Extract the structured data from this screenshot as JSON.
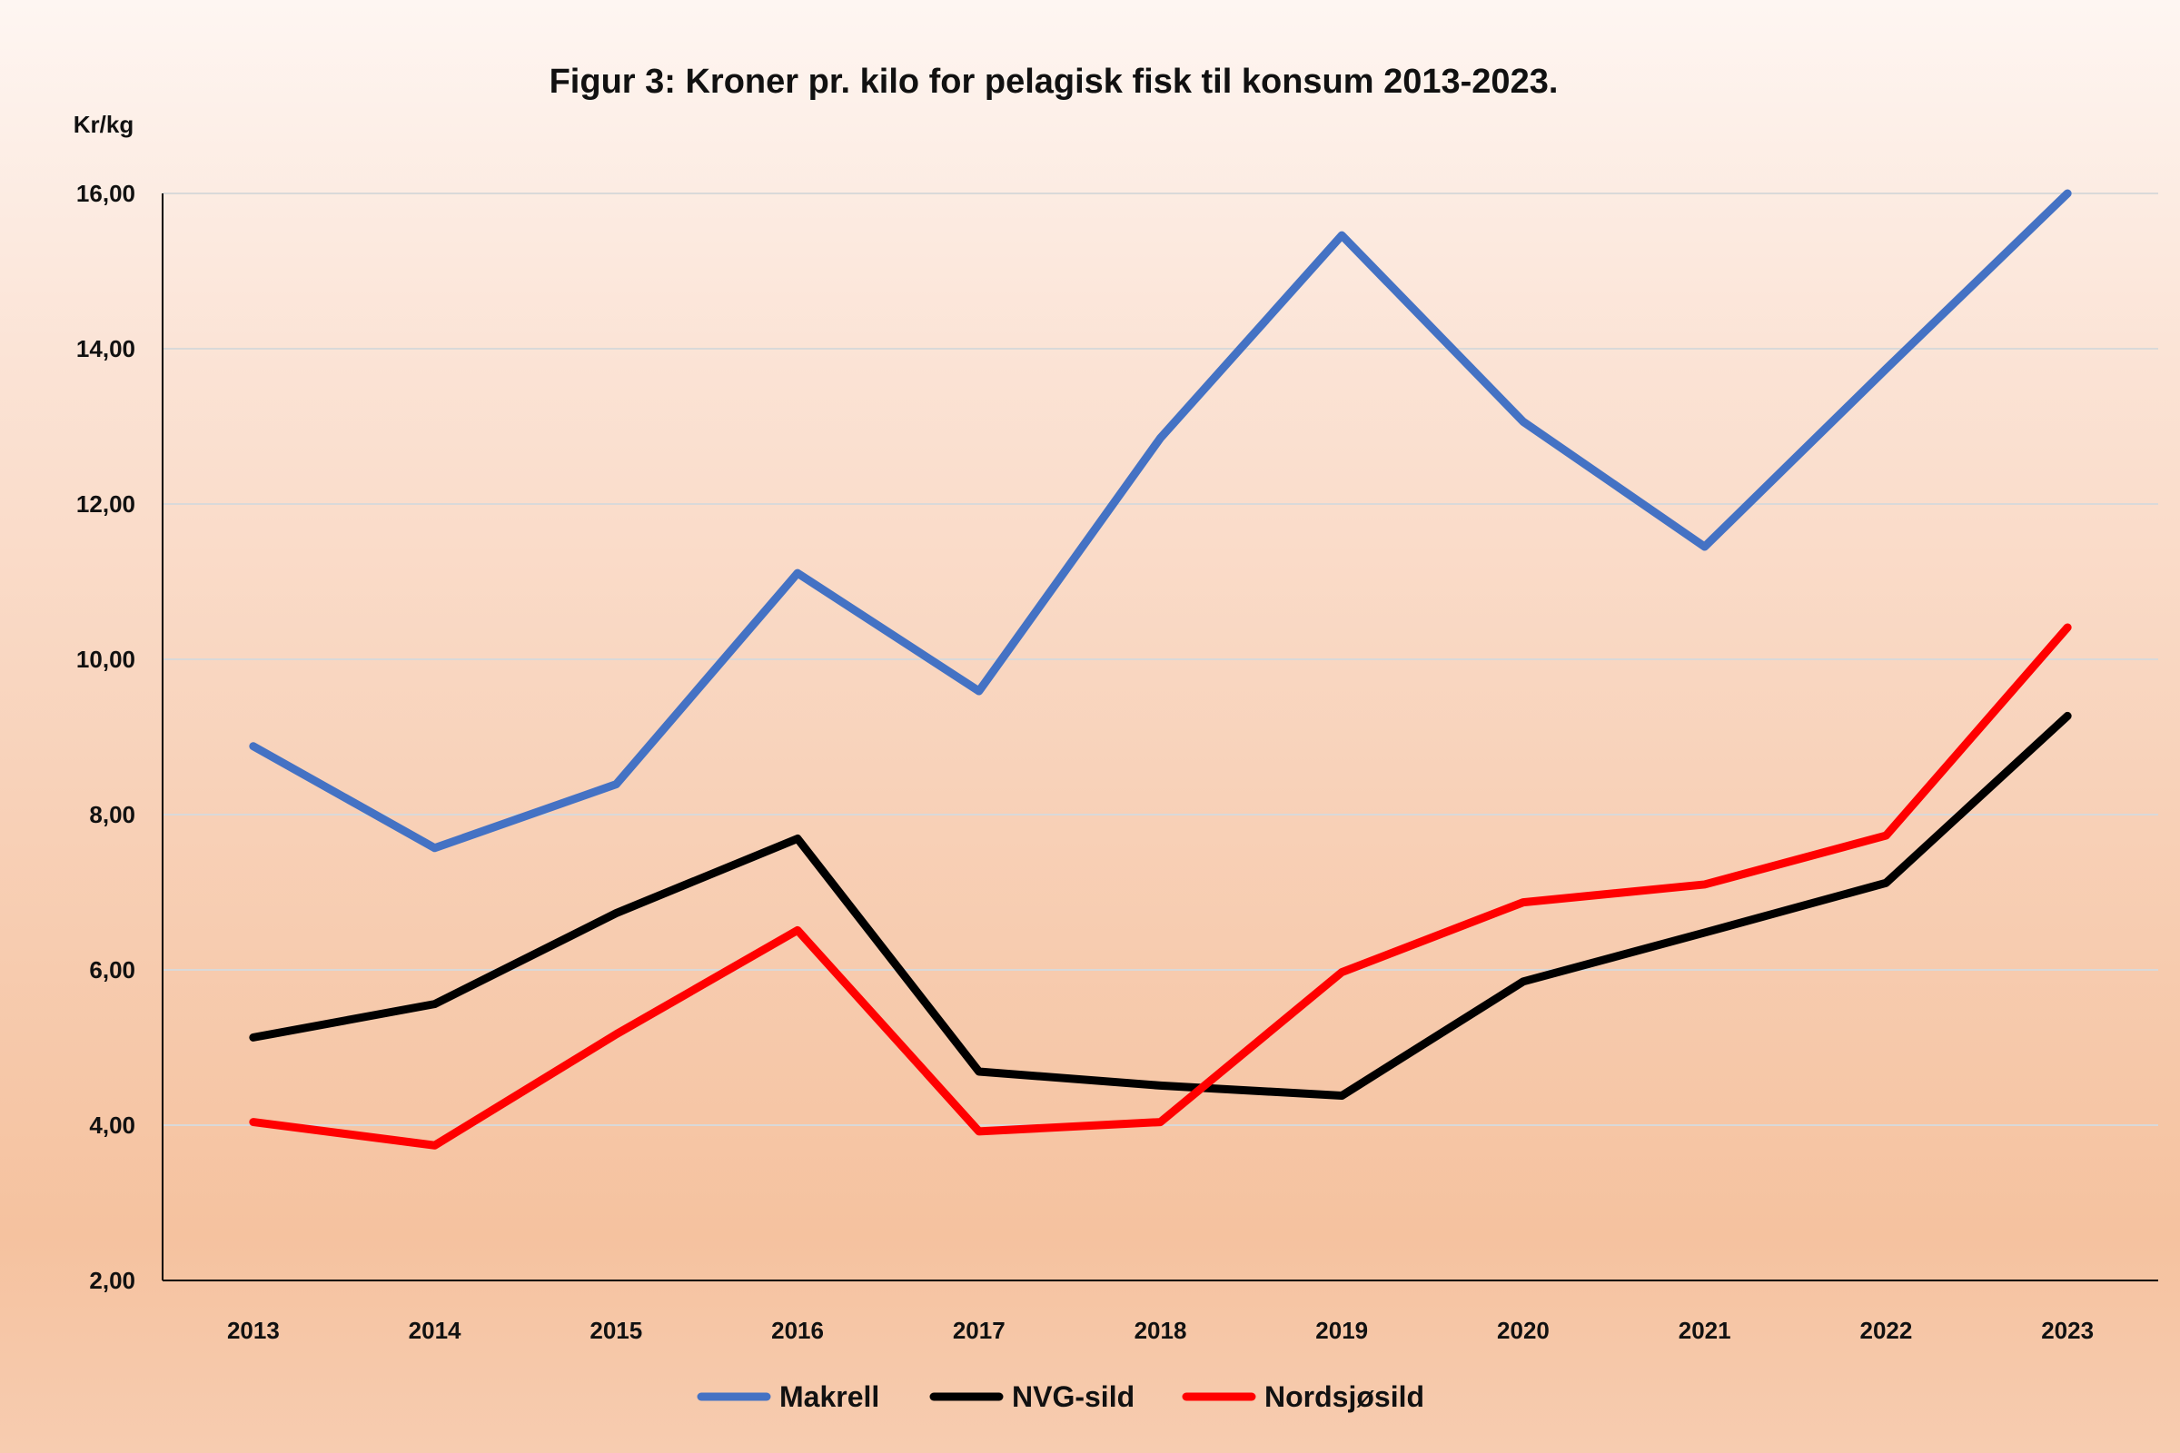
{
  "chart_data": {
    "type": "line",
    "title": "Figur 3: Kroner pr. kilo for pelagisk fisk til konsum 2013-2023.",
    "ylabel": "Kr/kg",
    "xlabel": "",
    "ylim": [
      2,
      16
    ],
    "yticks": [
      "2,00",
      "4,00",
      "6,00",
      "8,00",
      "10,00",
      "12,00",
      "14,00",
      "16,00"
    ],
    "grid": true,
    "legend_position": "bottom",
    "categories": [
      "2013",
      "2014",
      "2015",
      "2016",
      "2017",
      "2018",
      "2019",
      "2020",
      "2021",
      "2022",
      "2023"
    ],
    "series": [
      {
        "name": "Makrell",
        "color": "#4472c4",
        "values": [
          8.88,
          7.57,
          8.39,
          11.11,
          9.59,
          12.85,
          15.46,
          13.06,
          11.45,
          13.74,
          16.0
        ]
      },
      {
        "name": "NVG-sild",
        "color": "#000000",
        "values": [
          5.13,
          5.56,
          6.73,
          7.69,
          4.69,
          4.51,
          4.38,
          5.85,
          6.48,
          7.12,
          9.27
        ]
      },
      {
        "name": "Nordsjøsild",
        "color": "#ff0000",
        "values": [
          4.04,
          3.74,
          5.17,
          6.51,
          3.92,
          4.04,
          5.97,
          6.87,
          7.1,
          7.73,
          10.41
        ]
      }
    ]
  }
}
